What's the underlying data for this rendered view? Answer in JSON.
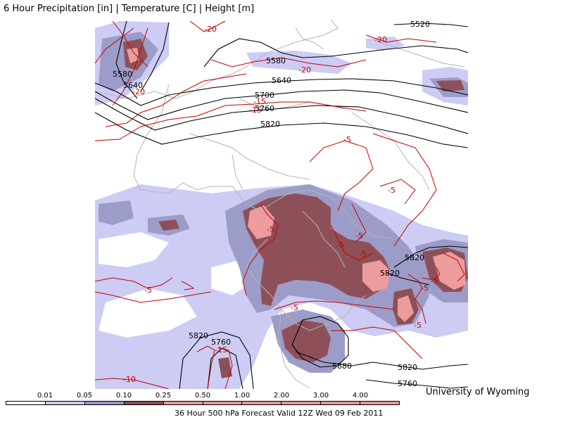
{
  "header": {
    "title": "6 Hour Precipitation [in] | Temperature [C] | Height [m]"
  },
  "credit": "University of Wyoming",
  "valid_time": "36 Hour 500 hPa Forecast Valid 12Z Wed 09 Feb 2011",
  "legend": {
    "levels": [
      "0.01",
      "0.05",
      "0.10",
      "0.25",
      "0.50",
      "1.00",
      "2.00",
      "3.00",
      "4.00"
    ],
    "colors": [
      "#ffffff",
      "#c8c8f0",
      "#9696c8",
      "#8c4c56",
      "#e69696",
      "#e69696",
      "#e69696",
      "#e69696",
      "#e69696",
      "#e69696"
    ]
  },
  "colors": {
    "precip_light": "#ccccf4",
    "precip_medium": "#9c9cc8",
    "precip_heavy": "#8e5058",
    "precip_extreme": "#ec9c9c",
    "height_contour": "#000000",
    "temp_contour": "#c80000",
    "coastline": "#b4b4b4"
  },
  "height_labels": [
    "5520",
    "5580",
    "5580",
    "5640",
    "5640",
    "5700",
    "5760",
    "5820",
    "5820",
    "5820",
    "5820",
    "5760",
    "5880",
    "5820",
    "5760"
  ],
  "temp_labels": [
    "-20",
    "-20",
    "-20",
    "-20",
    "-15",
    "-15",
    "-5",
    "-5",
    "-5",
    "-5",
    "-5",
    "-5",
    "-5",
    "-5",
    "-5",
    "-5",
    "-5",
    "-15",
    "-10"
  ]
}
